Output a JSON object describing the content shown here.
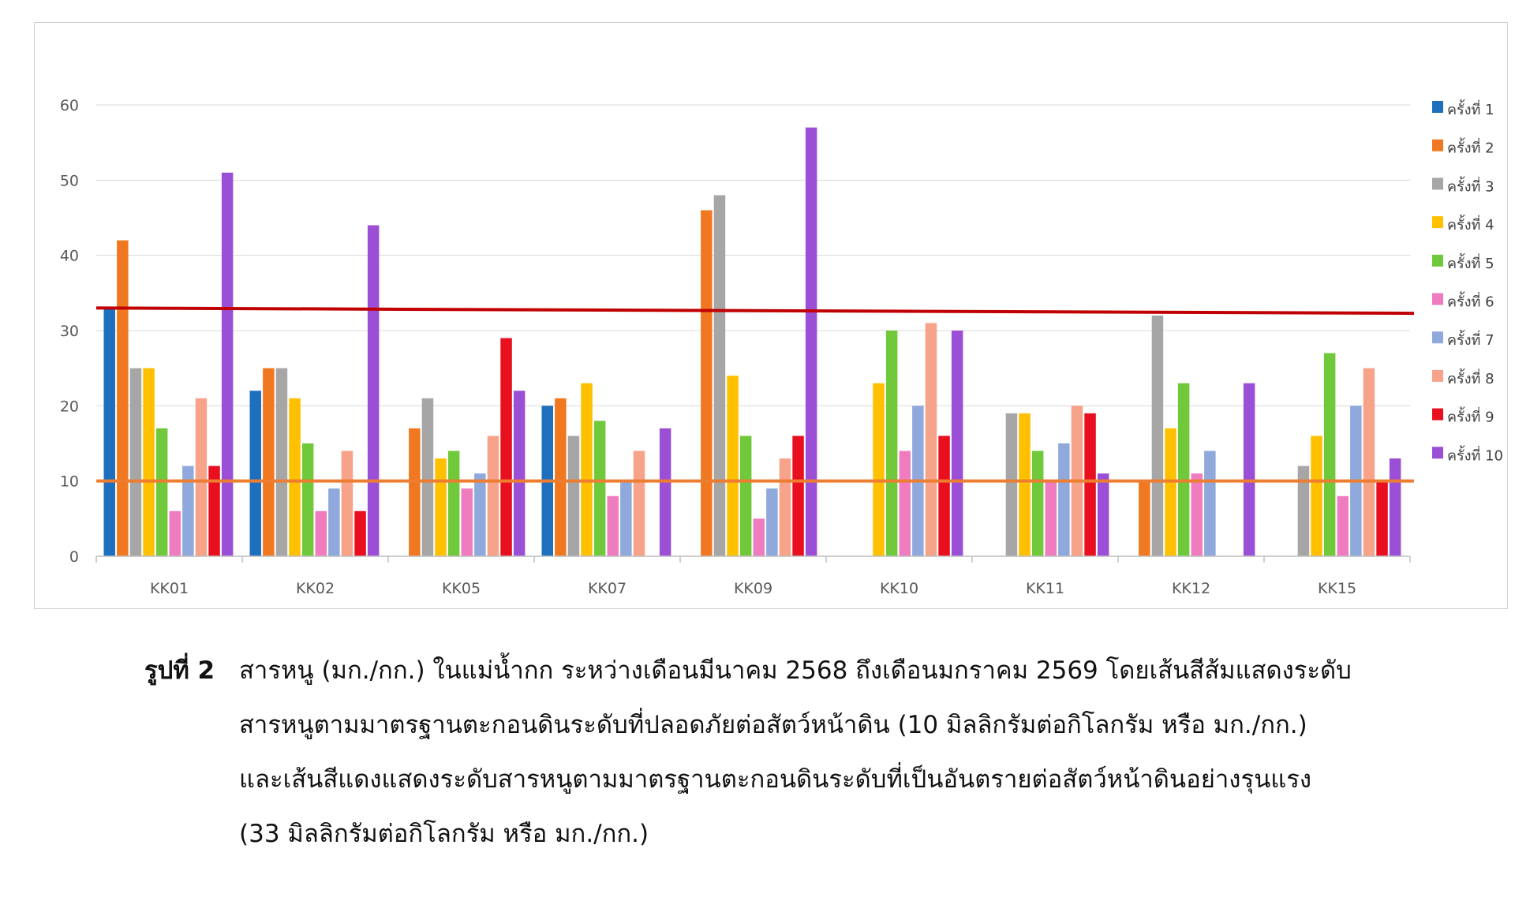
{
  "chart_data": {
    "type": "bar",
    "categories": [
      "KK01",
      "KK02",
      "KK05",
      "KK07",
      "KK09",
      "KK10",
      "KK11",
      "KK12",
      "KK15"
    ],
    "series": [
      {
        "name": "ครั้งที่ 1",
        "color": "#1f6fbf",
        "values": [
          33,
          22,
          null,
          20,
          null,
          null,
          null,
          null,
          null
        ]
      },
      {
        "name": "ครั้งที่ 2",
        "color": "#f07820",
        "values": [
          42,
          25,
          17,
          21,
          46,
          null,
          null,
          10,
          null
        ]
      },
      {
        "name": "ครั้งที่ 3",
        "color": "#a6a6a6",
        "values": [
          25,
          25,
          21,
          16,
          48,
          null,
          19,
          32,
          12
        ]
      },
      {
        "name": "ครั้งที่ 4",
        "color": "#ffc000",
        "values": [
          25,
          21,
          13,
          23,
          24,
          23,
          19,
          17,
          16
        ]
      },
      {
        "name": "ครั้งที่ 5",
        "color": "#70c93a",
        "values": [
          17,
          15,
          14,
          18,
          16,
          30,
          14,
          23,
          27
        ]
      },
      {
        "name": "ครั้งที่ 6",
        "color": "#f07cc0",
        "values": [
          6,
          6,
          9,
          8,
          5,
          14,
          10,
          11,
          8
        ]
      },
      {
        "name": "ครั้งที่ 7",
        "color": "#8fa9dc",
        "values": [
          12,
          9,
          11,
          10,
          9,
          20,
          15,
          14,
          20
        ]
      },
      {
        "name": "ครั้งที่ 8",
        "color": "#f7a38a",
        "values": [
          21,
          14,
          16,
          14,
          13,
          31,
          20,
          null,
          25
        ]
      },
      {
        "name": "ครั้งที่ 9",
        "color": "#e8101e",
        "values": [
          12,
          6,
          29,
          null,
          16,
          16,
          19,
          null,
          10
        ]
      },
      {
        "name": "ครั้งที่ 10",
        "color": "#9b4fd6",
        "values": [
          51,
          44,
          22,
          17,
          57,
          30,
          11,
          23,
          13
        ]
      }
    ],
    "ylim": [
      0,
      60
    ],
    "yticks": [
      0,
      10,
      20,
      30,
      40,
      50,
      60
    ],
    "grid": true,
    "legend": "right",
    "reference_lines": [
      {
        "value": 10,
        "color": "#ed7d31"
      },
      {
        "value": 33,
        "value_end": 32.3,
        "color": "#c00000"
      }
    ]
  },
  "caption": {
    "label": "รูปที่ 2",
    "lines": [
      "สารหนู (มก./กก.) ในแม่น้ำกก ระหว่างเดือนมีนาคม 2568 ถึงเดือนมกราคม 2569 โดยเส้นสีส้มแสดงระดับ",
      "สารหนูตามมาตรฐานตะกอนดินระดับที่ปลอดภัยต่อสัตว์หน้าดิน (10 มิลลิกรัมต่อกิโลกรัม หรือ มก./กก.)",
      "และเส้นสีแดงแสดงระดับสารหนูตามมาตรฐานตะกอนดินระดับที่เป็นอันตรายต่อสัตว์หน้าดินอย่างรุนแรง",
      "(33 มิลลิกรัมต่อกิโลกรัม หรือ มก./กก.)"
    ]
  }
}
